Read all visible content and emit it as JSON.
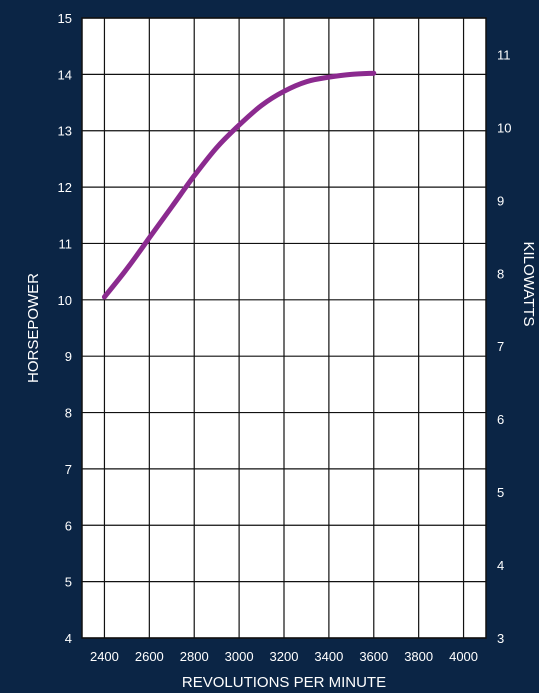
{
  "chart_data": {
    "type": "line",
    "title": "",
    "xlabel": "REVOLUTIONS PER MINUTE",
    "ylabel": "HORSEPOWER",
    "y2label": "KILOWATTS",
    "xlim": [
      2300,
      4100
    ],
    "ylim": [
      4,
      15
    ],
    "y2lim": [
      3,
      11.5
    ],
    "x_ticks": [
      2400,
      2600,
      2800,
      3000,
      3200,
      3400,
      3600,
      3800,
      4000
    ],
    "y_ticks": [
      4,
      5,
      6,
      7,
      8,
      9,
      10,
      11,
      12,
      13,
      14,
      15
    ],
    "y2_ticks": [
      3,
      4,
      5,
      6,
      7,
      8,
      9,
      10,
      11
    ],
    "grid": true,
    "colors": {
      "background": "#0b2545",
      "plot": "#ffffff",
      "line": "#8b2a8f",
      "grid": "#111111"
    },
    "series": [
      {
        "x": [
          2400,
          2500,
          2600,
          2700,
          2800,
          2900,
          3000,
          3100,
          3200,
          3300,
          3400,
          3500,
          3600
        ],
        "values": [
          10.05,
          10.55,
          11.1,
          11.65,
          12.2,
          12.7,
          13.1,
          13.45,
          13.7,
          13.87,
          13.95,
          14.0,
          14.02
        ]
      }
    ]
  }
}
